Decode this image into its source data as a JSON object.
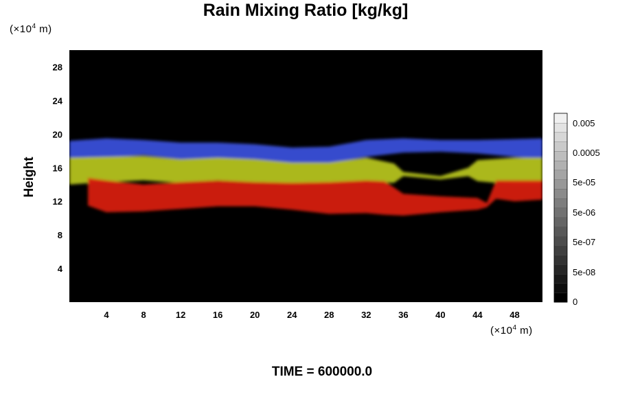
{
  "chart_data": {
    "type": "heatmap",
    "title": "Rain Mixing Ratio [kg/kg]",
    "ylabel": "Height",
    "xlabel": "",
    "x_unit": "(×10⁴ m)",
    "y_unit": "(×10⁴ m)",
    "x_ticks": [
      4,
      8,
      12,
      16,
      20,
      24,
      28,
      32,
      36,
      40,
      44,
      48
    ],
    "y_ticks": [
      4,
      8,
      12,
      16,
      20,
      24,
      28
    ],
    "xlim": [
      0,
      51
    ],
    "ylim": [
      0,
      30
    ],
    "background": "#000000",
    "colorbar": {
      "labels": [
        "0",
        "5e-08",
        "5e-07",
        "5e-06",
        "5e-05",
        "0.0005",
        "0.005"
      ],
      "levels": 20
    },
    "bands": [
      {
        "name": "blue",
        "color": "#3a4fd8",
        "top": [
          [
            0,
            19.2
          ],
          [
            4,
            19.5
          ],
          [
            8,
            19.3
          ],
          [
            12,
            19.0
          ],
          [
            16,
            19.0
          ],
          [
            20,
            18.8
          ],
          [
            24,
            18.4
          ],
          [
            28,
            18.5
          ],
          [
            32,
            19.3
          ],
          [
            36,
            19.5
          ],
          [
            40,
            19.3
          ],
          [
            44,
            19.3
          ],
          [
            48,
            19.4
          ],
          [
            51,
            19.5
          ]
        ],
        "bottom": [
          [
            0,
            17.0
          ],
          [
            4,
            17.2
          ],
          [
            8,
            17.5
          ],
          [
            12,
            17.0
          ],
          [
            16,
            17.1
          ],
          [
            20,
            17.0
          ],
          [
            24,
            16.5
          ],
          [
            28,
            16.5
          ],
          [
            32,
            17.3
          ],
          [
            36,
            17.8
          ],
          [
            40,
            17.9
          ],
          [
            44,
            17.7
          ],
          [
            48,
            17.3
          ],
          [
            51,
            17.0
          ]
        ]
      },
      {
        "name": "yellow",
        "color": "#b4c21e",
        "top": [
          [
            0,
            17.2
          ],
          [
            4,
            17.3
          ],
          [
            8,
            17.4
          ],
          [
            12,
            17.0
          ],
          [
            16,
            17.2
          ],
          [
            20,
            17.0
          ],
          [
            24,
            16.6
          ],
          [
            28,
            16.6
          ],
          [
            32,
            17.2
          ],
          [
            35,
            16.5
          ],
          [
            36,
            15.5
          ],
          [
            40,
            15.0
          ],
          [
            43,
            16.0
          ],
          [
            44,
            16.9
          ],
          [
            48,
            17.2
          ],
          [
            51,
            17.2
          ]
        ],
        "bottom": [
          [
            0,
            14.0
          ],
          [
            4,
            14.3
          ],
          [
            8,
            14.5
          ],
          [
            12,
            14.2
          ],
          [
            16,
            14.5
          ],
          [
            20,
            14.2
          ],
          [
            24,
            14.0
          ],
          [
            28,
            14.0
          ],
          [
            32,
            14.3
          ],
          [
            35,
            14.2
          ],
          [
            36,
            15.0
          ],
          [
            40,
            14.6
          ],
          [
            43,
            15.0
          ],
          [
            44,
            14.4
          ],
          [
            48,
            14.0
          ],
          [
            51,
            14.0
          ]
        ]
      },
      {
        "name": "red",
        "color": "#d51a10",
        "top": [
          [
            2,
            14.8
          ],
          [
            4,
            14.5
          ],
          [
            8,
            14.0
          ],
          [
            12,
            14.3
          ],
          [
            16,
            14.5
          ],
          [
            20,
            14.3
          ],
          [
            24,
            14.2
          ],
          [
            28,
            14.3
          ],
          [
            32,
            14.5
          ],
          [
            34,
            14.4
          ],
          [
            36,
            12.9
          ],
          [
            40,
            12.6
          ],
          [
            44,
            12.4
          ],
          [
            45,
            11.8
          ],
          [
            46,
            14.5
          ],
          [
            48,
            14.5
          ],
          [
            51,
            14.5
          ]
        ],
        "bottom": [
          [
            2,
            11.5
          ],
          [
            4,
            10.7
          ],
          [
            8,
            10.8
          ],
          [
            12,
            11.1
          ],
          [
            16,
            11.4
          ],
          [
            20,
            11.4
          ],
          [
            24,
            11.0
          ],
          [
            28,
            10.5
          ],
          [
            32,
            10.6
          ],
          [
            34,
            10.4
          ],
          [
            36,
            10.3
          ],
          [
            40,
            10.7
          ],
          [
            44,
            11.0
          ],
          [
            45,
            11.3
          ],
          [
            46,
            12.3
          ],
          [
            48,
            12.0
          ],
          [
            51,
            12.2
          ]
        ]
      }
    ]
  },
  "time_label": "TIME = 600000.0"
}
